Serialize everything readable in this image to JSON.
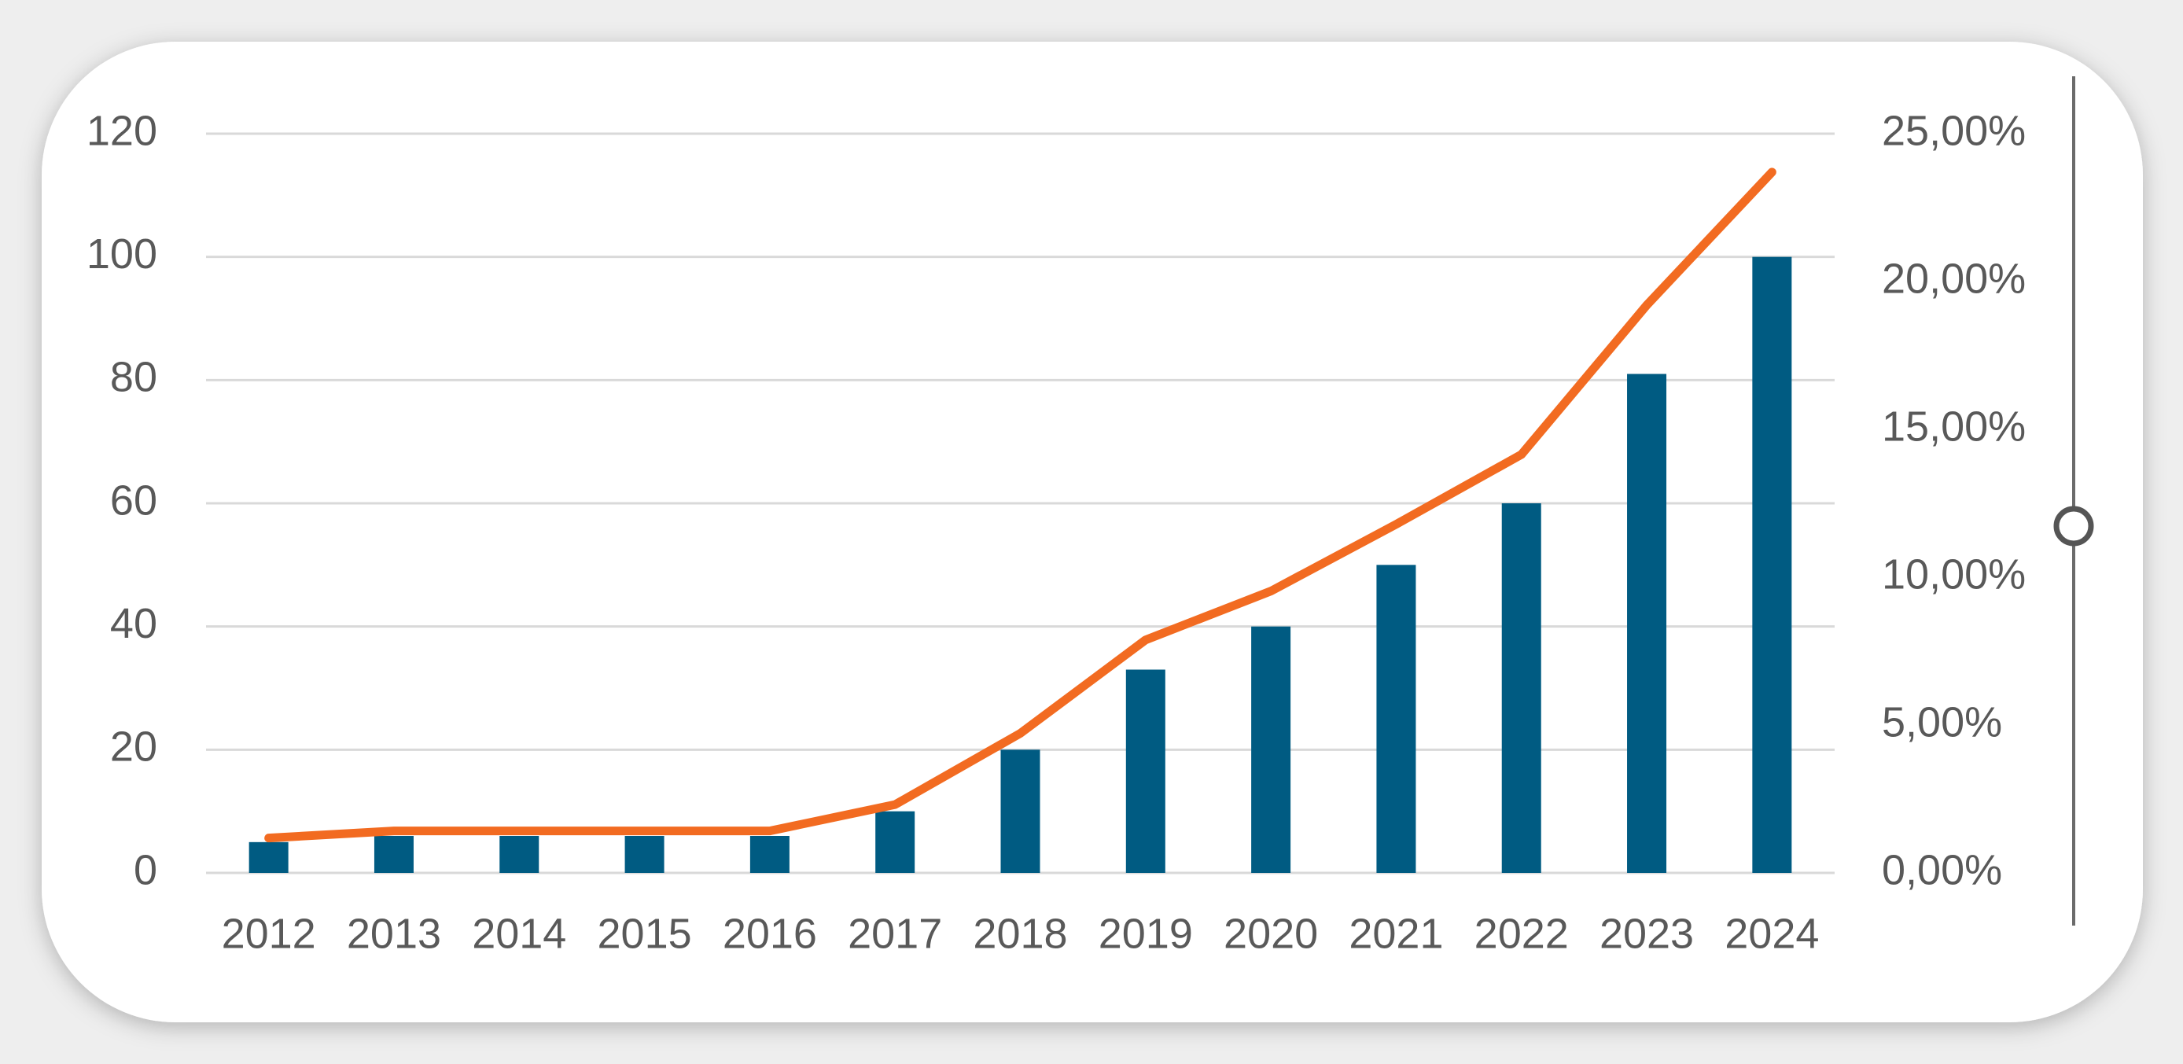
{
  "chart_data": {
    "type": "bar",
    "categories": [
      "2012",
      "2013",
      "2014",
      "2015",
      "2016",
      "2017",
      "2018",
      "2019",
      "2020",
      "2021",
      "2022",
      "2023",
      "2024"
    ],
    "series": [
      {
        "type": "bar",
        "color": "#005b82",
        "values": [
          5,
          6,
          6,
          6,
          6,
          10,
          20,
          33,
          40,
          50,
          60,
          81,
          100
        ]
      },
      {
        "type": "line",
        "axis": "y2",
        "color": "#f26b21",
        "values": [
          1.18,
          1.42,
          1.42,
          1.42,
          1.42,
          2.31,
          4.72,
          7.88,
          9.53,
          11.79,
          14.15,
          19.2,
          23.7
        ]
      }
    ],
    "ylim": [
      0,
      120
    ],
    "yticks": [
      0,
      20,
      40,
      60,
      80,
      100,
      120
    ],
    "y2lim": [
      0,
      25
    ],
    "y2ticks": [
      {
        "value": 0,
        "label": "0,00%"
      },
      {
        "value": 5,
        "label": "5,00%"
      },
      {
        "value": 10,
        "label": "10,00%"
      },
      {
        "value": 15,
        "label": "15,00%"
      },
      {
        "value": 20,
        "label": "20,00%"
      },
      {
        "value": 25,
        "label": "25,00%"
      }
    ],
    "grid": true
  }
}
